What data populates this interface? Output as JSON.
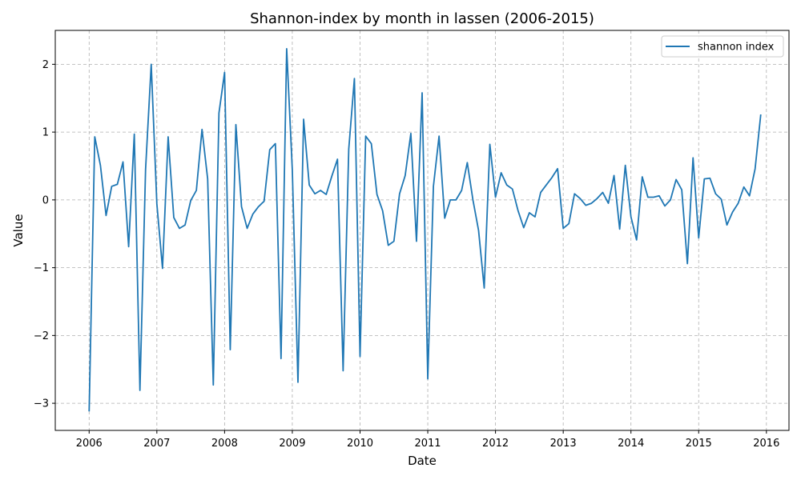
{
  "chart_data": {
    "type": "line",
    "title": "Shannon-index by month in lassen (2006-2015)",
    "xlabel": "Date",
    "ylabel": "Value",
    "x_ticks": [
      "2006",
      "2007",
      "2008",
      "2009",
      "2010",
      "2011",
      "2012",
      "2013",
      "2014",
      "2015",
      "2016"
    ],
    "y_ticks": [
      "−3",
      "−2",
      "−1",
      "0",
      "1",
      "2"
    ],
    "ylim": [
      -3.4,
      2.5
    ],
    "xlim": [
      "2005-07",
      "2016-05"
    ],
    "grid": true,
    "legend_position": "top-right",
    "color": "#1f77b4",
    "series": [
      {
        "name": "shannon index",
        "x": [
          "2006-01",
          "2006-02",
          "2006-03",
          "2006-04",
          "2006-05",
          "2006-06",
          "2006-07",
          "2006-08",
          "2006-09",
          "2006-10",
          "2006-11",
          "2006-12",
          "2007-01",
          "2007-02",
          "2007-03",
          "2007-04",
          "2007-05",
          "2007-06",
          "2007-07",
          "2007-08",
          "2007-09",
          "2007-10",
          "2007-11",
          "2007-12",
          "2008-01",
          "2008-02",
          "2008-03",
          "2008-04",
          "2008-05",
          "2008-06",
          "2008-07",
          "2008-08",
          "2008-09",
          "2008-10",
          "2008-11",
          "2008-12",
          "2009-01",
          "2009-02",
          "2009-03",
          "2009-04",
          "2009-05",
          "2009-06",
          "2009-07",
          "2009-08",
          "2009-09",
          "2009-10",
          "2009-11",
          "2009-12",
          "2010-01",
          "2010-02",
          "2010-03",
          "2010-04",
          "2010-05",
          "2010-06",
          "2010-07",
          "2010-08",
          "2010-09",
          "2010-10",
          "2010-11",
          "2010-12",
          "2011-01",
          "2011-02",
          "2011-03",
          "2011-04",
          "2011-05",
          "2011-06",
          "2011-07",
          "2011-08",
          "2011-09",
          "2011-10",
          "2011-11",
          "2011-12",
          "2012-01",
          "2012-02",
          "2012-03",
          "2012-04",
          "2012-05",
          "2012-06",
          "2012-07",
          "2012-08",
          "2012-09",
          "2012-10",
          "2012-11",
          "2012-12",
          "2013-01",
          "2013-02",
          "2013-03",
          "2013-04",
          "2013-05",
          "2013-06",
          "2013-07",
          "2013-08",
          "2013-09",
          "2013-10",
          "2013-11",
          "2013-12",
          "2014-01",
          "2014-02",
          "2014-03",
          "2014-04",
          "2014-05",
          "2014-06",
          "2014-07",
          "2014-08",
          "2014-09",
          "2014-10",
          "2014-11",
          "2014-12",
          "2015-01",
          "2015-02",
          "2015-03",
          "2015-04",
          "2015-05",
          "2015-06",
          "2015-07",
          "2015-08",
          "2015-09",
          "2015-10",
          "2015-11",
          "2015-12"
        ],
        "values": [
          -3.12,
          0.93,
          0.51,
          -0.23,
          0.2,
          0.23,
          0.56,
          -0.69,
          0.97,
          -2.81,
          0.45,
          2.0,
          -0.06,
          -1.01,
          0.93,
          -0.26,
          -0.42,
          -0.37,
          -0.01,
          0.14,
          1.04,
          0.31,
          -2.73,
          1.28,
          1.88,
          -2.21,
          1.11,
          -0.1,
          -0.42,
          -0.21,
          -0.1,
          -0.02,
          0.74,
          0.83,
          -2.34,
          2.23,
          0.44,
          -2.69,
          1.19,
          0.22,
          0.09,
          0.14,
          0.08,
          0.35,
          0.6,
          -2.52,
          0.75,
          1.79,
          -2.31,
          0.94,
          0.83,
          0.08,
          -0.16,
          -0.67,
          -0.61,
          0.09,
          0.36,
          0.98,
          -0.61,
          1.58,
          -2.64,
          0.2,
          0.94,
          -0.27,
          0.0,
          0.0,
          0.14,
          0.55,
          0.0,
          -0.45,
          -1.3,
          0.82,
          0.04,
          0.4,
          0.22,
          0.16,
          -0.16,
          -0.41,
          -0.19,
          -0.25,
          0.11,
          0.22,
          0.33,
          0.46,
          -0.42,
          -0.35,
          0.09,
          0.02,
          -0.08,
          -0.05,
          0.02,
          0.11,
          -0.05,
          0.36,
          -0.43,
          0.51,
          -0.25,
          -0.59,
          0.34,
          0.04,
          0.04,
          0.06,
          -0.09,
          0.0,
          0.3,
          0.15,
          -0.94,
          0.62,
          -0.56,
          0.31,
          0.32,
          0.09,
          0.01,
          -0.37,
          -0.18,
          -0.05,
          0.19,
          0.06,
          0.46,
          1.26
        ]
      }
    ]
  }
}
